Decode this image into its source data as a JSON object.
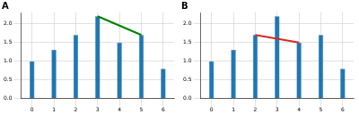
{
  "chart_data": [
    {
      "type": "bar",
      "title": "A",
      "categories": [
        "0",
        "1",
        "2",
        "3",
        "4",
        "5",
        "6"
      ],
      "series": [
        {
          "type": "bar",
          "color": "#1f77b4",
          "values": [
            1.0,
            1.3,
            1.7,
            2.2,
            1.5,
            1.7,
            0.8
          ]
        },
        {
          "type": "line",
          "color": "#008000",
          "values": [
            null,
            null,
            null,
            2.2,
            null,
            1.7,
            null
          ]
        }
      ],
      "ylim": [
        0,
        2.3
      ],
      "yticks": [
        {
          "value": 0,
          "label": "0.0"
        },
        {
          "value": 0.5,
          "label": "0.5"
        },
        {
          "value": 1,
          "label": "1.0"
        },
        {
          "value": 1.5,
          "label": "1.5"
        },
        {
          "value": 2,
          "label": "2.0"
        }
      ],
      "grid": true
    },
    {
      "type": "bar",
      "title": "B",
      "categories": [
        "0",
        "1",
        "2",
        "3",
        "4",
        "5",
        "6"
      ],
      "series": [
        {
          "type": "bar",
          "color": "#1f77b4",
          "values": [
            1.0,
            1.3,
            1.7,
            2.2,
            1.5,
            1.7,
            0.8
          ]
        },
        {
          "type": "line",
          "color": "#d62728",
          "values": [
            null,
            null,
            1.7,
            null,
            1.5,
            null,
            null
          ]
        }
      ],
      "ylim": [
        0,
        2.3
      ],
      "yticks": [
        {
          "value": 0,
          "label": "0.0"
        },
        {
          "value": 0.5,
          "label": "0.5"
        },
        {
          "value": 1,
          "label": "1.0"
        },
        {
          "value": 1.5,
          "label": "1.5"
        },
        {
          "value": 2,
          "label": "2.0"
        }
      ],
      "grid": true
    }
  ]
}
